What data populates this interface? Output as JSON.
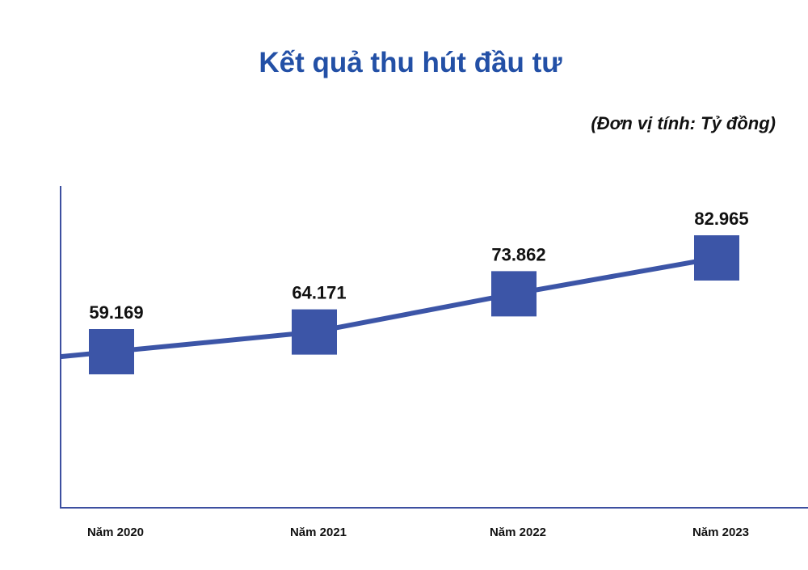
{
  "chart_data": {
    "type": "line",
    "title": "Kết quả thu hút đầu tư",
    "unit_note": "(Đơn vị tính: Tỷ đồng)",
    "categories": [
      "Năm 2020",
      "Năm 2021",
      "Năm 2022",
      "Năm 2023"
    ],
    "series": [
      {
        "values": [
          59169,
          64171,
          73862,
          82965
        ],
        "labels": [
          "59.169",
          "64.171",
          "73.862",
          "82.965"
        ]
      }
    ],
    "marker": "square",
    "grid": false,
    "legend": "none"
  },
  "colors": {
    "title": "#2350a6",
    "series": "#3c55a7",
    "axis": "#3c4fa0",
    "text": "#111111"
  }
}
